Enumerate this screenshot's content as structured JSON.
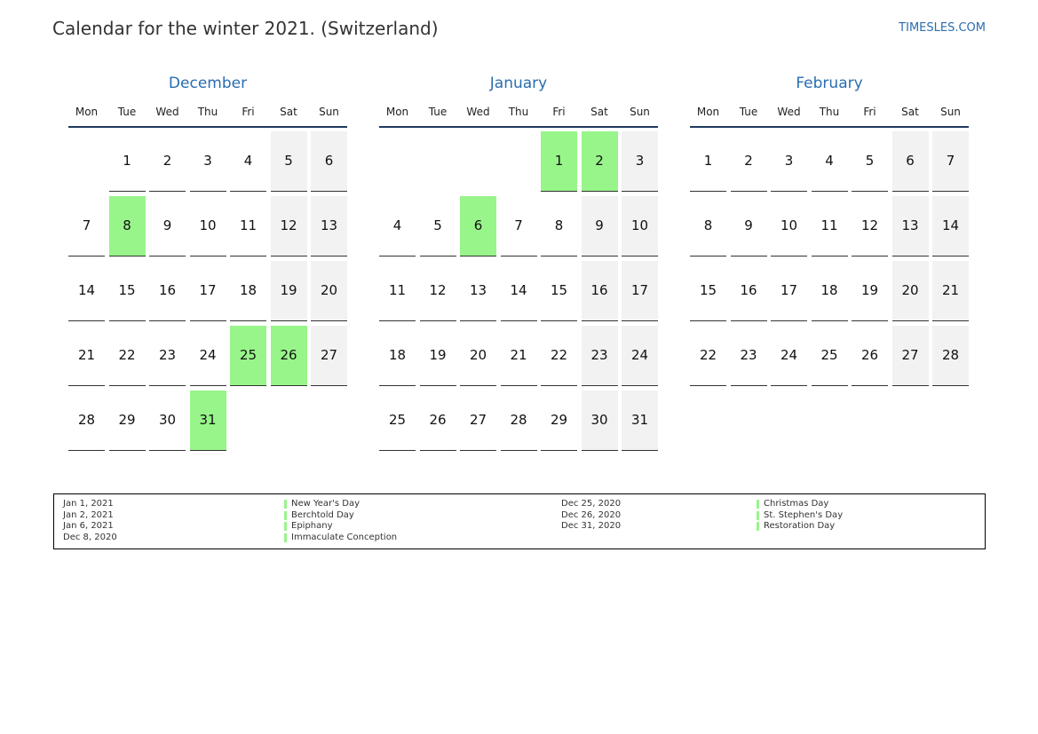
{
  "header": {
    "title": "Calendar for the winter 2021. (Switzerland)",
    "site": "TIMESLES.COM"
  },
  "weekdays": [
    "Mon",
    "Tue",
    "Wed",
    "Thu",
    "Fri",
    "Sat",
    "Sun"
  ],
  "months": [
    {
      "name": "December",
      "highlighted": [
        8,
        25,
        26,
        31
      ],
      "weeks": [
        [
          null,
          1,
          2,
          3,
          4,
          5,
          6
        ],
        [
          7,
          8,
          9,
          10,
          11,
          12,
          13
        ],
        [
          14,
          15,
          16,
          17,
          18,
          19,
          20
        ],
        [
          21,
          22,
          23,
          24,
          25,
          26,
          27
        ],
        [
          28,
          29,
          30,
          31,
          null,
          null,
          null
        ]
      ]
    },
    {
      "name": "January",
      "highlighted": [
        1,
        2,
        6
      ],
      "weeks": [
        [
          null,
          null,
          null,
          null,
          1,
          2,
          3
        ],
        [
          4,
          5,
          6,
          7,
          8,
          9,
          10
        ],
        [
          11,
          12,
          13,
          14,
          15,
          16,
          17
        ],
        [
          18,
          19,
          20,
          21,
          22,
          23,
          24
        ],
        [
          25,
          26,
          27,
          28,
          29,
          30,
          31
        ]
      ]
    },
    {
      "name": "February",
      "highlighted": [],
      "weeks": [
        [
          1,
          2,
          3,
          4,
          5,
          6,
          7
        ],
        [
          8,
          9,
          10,
          11,
          12,
          13,
          14
        ],
        [
          15,
          16,
          17,
          18,
          19,
          20,
          21
        ],
        [
          22,
          23,
          24,
          25,
          26,
          27,
          28
        ]
      ]
    }
  ],
  "legend": {
    "columns": [
      [
        {
          "date": "Jan 1, 2021",
          "name": "New Year's Day"
        },
        {
          "date": "Jan 2, 2021",
          "name": "Berchtold Day"
        },
        {
          "date": "Jan 6, 2021",
          "name": "Epiphany"
        },
        {
          "date": "Dec 8, 2020",
          "name": "Immaculate Conception"
        }
      ],
      [
        {
          "date": "Dec 25, 2020",
          "name": "Christmas Day"
        },
        {
          "date": "Dec 26, 2020",
          "name": "St. Stephen's Day"
        },
        {
          "date": "Dec 31, 2020",
          "name": "Restoration Day"
        }
      ]
    ]
  }
}
